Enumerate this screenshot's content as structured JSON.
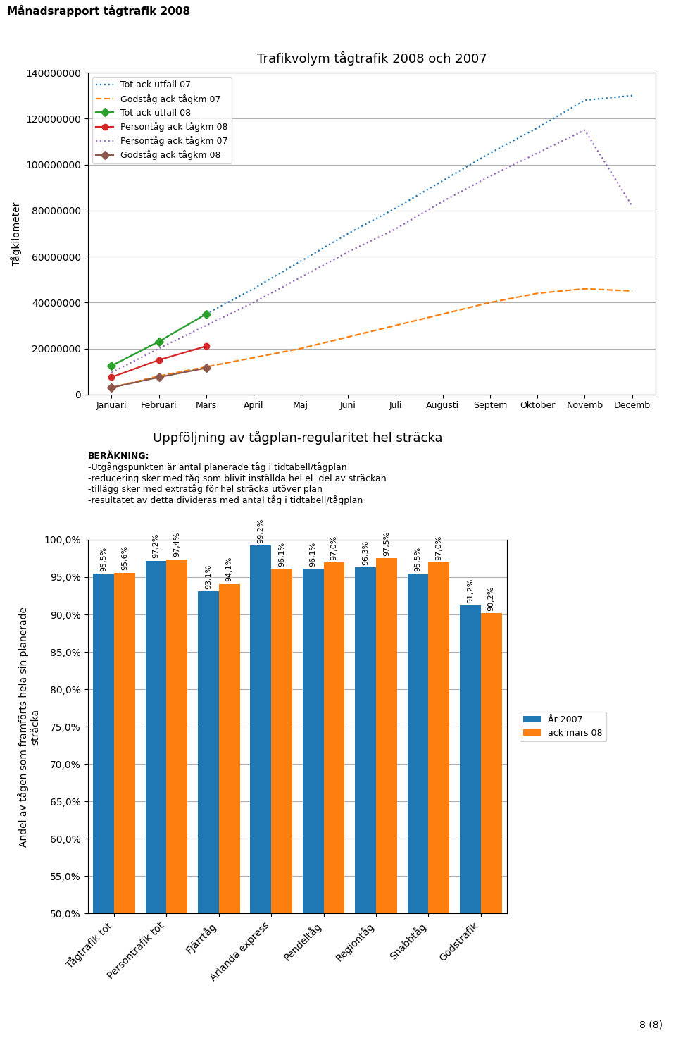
{
  "title": "Månadsrapport tågtrafik 2008",
  "annotations": [
    "8 (8)"
  ],
  "chart_data": [
    {
      "type": "line",
      "title": "Trafikvolym tågtrafik 2008 och 2007",
      "y_label": "Tågkilometer",
      "categories": [
        "Januari",
        "Februari",
        "Mars",
        "April",
        "Maj",
        "Juni",
        "Juli",
        "Augusti",
        "Septem",
        "Oktober",
        "Novemb",
        "Decemb"
      ],
      "series": [
        {
          "name": "Tot ack utfall 07",
          "line_style": "dotted",
          "values": [
            12500000,
            23000000,
            35000000,
            46000000,
            58000000,
            70000000,
            81000000,
            93000000,
            105000000,
            116000000,
            128000000,
            130000000
          ]
        },
        {
          "name": "Godståg ack tågkm 07",
          "line_style": "dashed",
          "values": [
            3000000,
            8000000,
            12000000,
            16000000,
            20000000,
            25000000,
            30000000,
            35000000,
            40000000,
            44000000,
            46000000,
            45000000
          ]
        },
        {
          "name": "Tot ack utfall 08",
          "line_style": "solid",
          "marker": "diamond",
          "values": [
            12500000,
            23000000,
            35000000,
            null,
            null,
            null,
            null,
            null,
            null,
            null,
            null,
            null
          ]
        },
        {
          "name": "Persontåg ack tågkm 08",
          "line_style": "solid",
          "marker": "circle",
          "values": [
            7500000,
            15000000,
            21000000,
            null,
            null,
            null,
            null,
            null,
            null,
            null,
            null,
            null
          ]
        },
        {
          "name": "Persontåg ack tågkm 07",
          "line_style": "dotted",
          "values": [
            9500000,
            20000000,
            30000000,
            40000000,
            51000000,
            62000000,
            72000000,
            84000000,
            95000000,
            105000000,
            115000000,
            82000000
          ]
        },
        {
          "name": "Godståg ack tågkm 08",
          "line_style": "solid",
          "marker": "diamond",
          "values": [
            3000000,
            7500000,
            11500000,
            null,
            null,
            null,
            null,
            null,
            null,
            null,
            null,
            null
          ]
        }
      ],
      "ylim": [
        0,
        140000000
      ],
      "yticks": [
        0,
        20000000,
        40000000,
        60000000,
        80000000,
        100000000,
        120000000,
        140000000
      ],
      "grid": true,
      "legend": "upper left"
    },
    {
      "type": "bar",
      "title": "Uppföljning av tågplan-regularitet hel sträcka",
      "y_label": "Andel av tågen som framförts hela sin planerade\nsträcka",
      "categories": [
        "Tågtrafik tot",
        "Persontrafik tot",
        "Fjärrtåg",
        "Arlanda express",
        "Pendeltåg",
        "Regiontåg",
        "Snabbtåg",
        "Godstrafik"
      ],
      "series": [
        {
          "name": "År 2007",
          "values": [
            95.5,
            97.2,
            93.1,
            99.2,
            96.1,
            96.3,
            95.5,
            91.2
          ],
          "value_labels": [
            "95,5%",
            "97,2%",
            "93,1%",
            "99,2%",
            "96,1%",
            "96,3%",
            "95,5%",
            "91,2%"
          ]
        },
        {
          "name": "ack mars 08",
          "values": [
            95.6,
            97.4,
            94.1,
            96.1,
            97.0,
            97.5,
            97.0,
            90.2
          ],
          "value_labels": [
            "95,6%",
            "97,4%",
            "94,1%",
            "96,1%",
            "97,0%",
            "97,5%",
            "97,0%",
            "90,2%"
          ]
        }
      ],
      "ylim": [
        50,
        100
      ],
      "yticks": [
        {
          "value": 50.0,
          "label": "50,0%"
        },
        {
          "value": 55.0,
          "label": "55,0%"
        },
        {
          "value": 60.0,
          "label": "60,0%"
        },
        {
          "value": 65.0,
          "label": "65,0%"
        },
        {
          "value": 70.0,
          "label": "70,0%"
        },
        {
          "value": 75.0,
          "label": "75,0%"
        },
        {
          "value": 80.0,
          "label": "80,0%"
        },
        {
          "value": 85.0,
          "label": "85,0%"
        },
        {
          "value": 90.0,
          "label": "90,0%"
        },
        {
          "value": 95.0,
          "label": "95,0%"
        },
        {
          "value": 100.0,
          "label": "100,0%"
        }
      ],
      "grid": true,
      "legend": "center left",
      "data_labels": true,
      "annotations": [
        "BERÄKNING:",
        "-Utgångspunkten är antal planerade tåg i tidtabell/tågplan",
        "-reducering sker med tåg som blivit inställda hel el. del av sträckan",
        "-tillägg sker med extratåg för hel sträcka utöver plan",
        "-resultatet av detta divideras med antal tåg i tidtabell/tågplan"
      ]
    }
  ]
}
